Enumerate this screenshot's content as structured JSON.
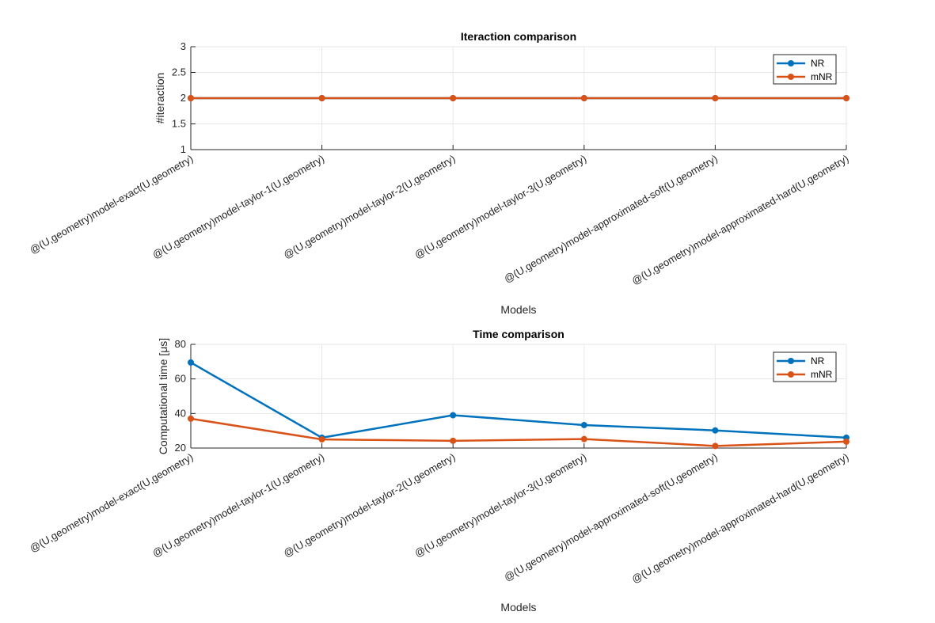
{
  "chart_data": [
    {
      "type": "line",
      "title": "Iteraction comparison",
      "xlabel": "Models",
      "ylabel": "#iteraction",
      "categories": [
        "@(U,geometry)model-exact(U,geometry)",
        "@(U,geometry)model-taylor-1(U,geometry)",
        "@(U,geometry)model-taylor-2(U,geometry)",
        "@(U,geometry)model-taylor-3(U,geometry)",
        "@(U,geometry)model-approximated-soft(U,geometry)",
        "@(U,geometry)model-approximated-hard(U,geometry)"
      ],
      "ylim": [
        1,
        3
      ],
      "yticks": [
        "1",
        "1.5",
        "2",
        "2.5",
        "3"
      ],
      "grid": true,
      "legend_position": "top-right",
      "series": [
        {
          "name": "NR",
          "color": "#0072BD",
          "values": [
            2,
            2,
            2,
            2,
            2,
            2
          ]
        },
        {
          "name": "mNR",
          "color": "#D95319",
          "values": [
            2,
            2,
            2,
            2,
            2,
            2
          ]
        }
      ]
    },
    {
      "type": "line",
      "title": "Time comparison",
      "xlabel": "Models",
      "ylabel": "Computational time [μs]",
      "categories": [
        "@(U,geometry)model-exact(U,geometry)",
        "@(U,geometry)model-taylor-1(U,geometry)",
        "@(U,geometry)model-taylor-2(U,geometry)",
        "@(U,geometry)model-taylor-3(U,geometry)",
        "@(U,geometry)model-approximated-soft(U,geometry)",
        "@(U,geometry)model-approximated-hard(U,geometry)"
      ],
      "ylim": [
        20,
        80
      ],
      "yticks": [
        "20",
        "40",
        "60",
        "80"
      ],
      "grid": true,
      "legend_position": "top-right",
      "series": [
        {
          "name": "NR",
          "color": "#0072BD",
          "values": [
            69.5,
            26,
            39,
            33.3,
            30.2,
            26
          ]
        },
        {
          "name": "mNR",
          "color": "#D95319",
          "values": [
            37,
            25,
            24.2,
            25.2,
            21.2,
            23.7
          ]
        }
      ]
    }
  ]
}
